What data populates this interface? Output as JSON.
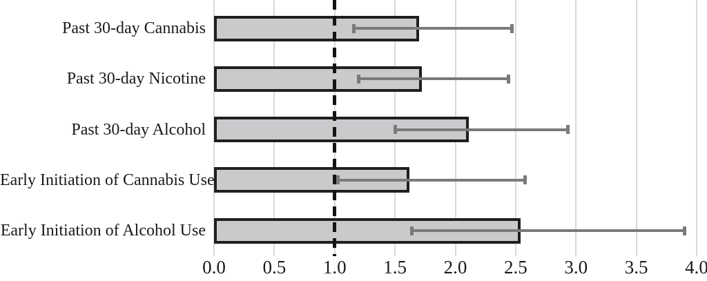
{
  "chart_data": {
    "type": "bar",
    "orientation": "horizontal",
    "title": "",
    "xlabel": "",
    "ylabel": "",
    "categories": [
      "Past 30-day Cannabis",
      "Past 30-day Nicotine",
      "Past 30-day Alcohol",
      "Early Initiation of Cannabis Use",
      "Early Initiation of Alcohol Use"
    ],
    "values": [
      1.7,
      1.72,
      2.11,
      1.62,
      2.54
    ],
    "error_bars_ci": [
      [
        1.16,
        2.47
      ],
      [
        1.2,
        2.44
      ],
      [
        1.5,
        2.93
      ],
      [
        1.03,
        2.58
      ],
      [
        1.64,
        3.9
      ]
    ],
    "reference_line_x": 1.0,
    "xlim": [
      0.0,
      4.0
    ],
    "x_tick_values": [
      0,
      0.5,
      1,
      1.5,
      2,
      2.5,
      3,
      3.5,
      4
    ],
    "x_tick_labels": [
      "0.0",
      "0.5",
      "1.0",
      "1.5",
      "2.0",
      "2.5",
      "3.0",
      "3.5",
      "4.0"
    ],
    "grid": true,
    "legend": "none",
    "colors": {
      "background": "#ffffff",
      "bar_fill": "#c9cacc",
      "bar_border": "#1f1f1f",
      "error_bar": "#7a7a7c",
      "gridline": "#d9d9d9",
      "reference_line": "#141414",
      "text": "#1a1a1a"
    }
  }
}
